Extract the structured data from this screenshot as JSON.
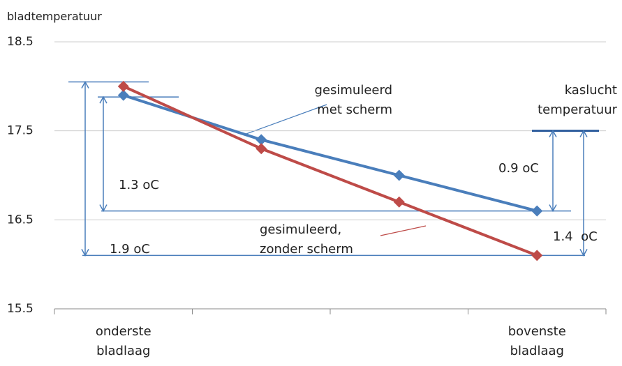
{
  "chart_data": {
    "type": "line",
    "y_label": "bladtemperatuur",
    "categories": [
      "onderste bladlaag",
      null,
      null,
      "bovenste bladlaag"
    ],
    "series": [
      {
        "name": "gesimuleerd met scherm",
        "color": "#4a7ebb",
        "values": [
          17.9,
          17.4,
          17.0,
          16.6
        ]
      },
      {
        "name": "gesimuleerd, zonder scherm",
        "color": "#be4b48",
        "values": [
          18.0,
          17.3,
          16.7,
          16.1
        ]
      }
    ],
    "ylim": [
      15.5,
      18.5
    ],
    "yticks": [
      15.5,
      16.5,
      17.5,
      18.5
    ],
    "grid": true,
    "annotations": [
      {
        "text": "kaslucht temperatuur",
        "y": 17.5
      },
      {
        "text": "1.9 oC",
        "from": 18.05,
        "to": 16.1
      },
      {
        "text": "1.3 oC",
        "from": 17.88,
        "to": 16.6
      },
      {
        "text": "0.9 oC",
        "from": 17.5,
        "to": 16.6
      },
      {
        "text": "1.4  oC",
        "from": 17.5,
        "to": 16.1
      }
    ]
  }
}
